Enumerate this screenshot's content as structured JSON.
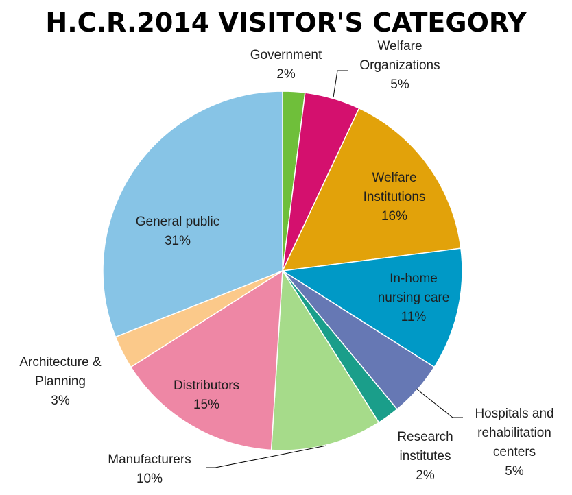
{
  "chart_data": {
    "type": "pie",
    "title": "H.C.R.2014 VISITOR'S CATEGORY",
    "slices": [
      {
        "name": "Government",
        "value": 2,
        "label": "2%",
        "color": "#6fbf3a"
      },
      {
        "name": "Welfare Organizations",
        "value": 5,
        "label": "5%",
        "color": "#d4106e"
      },
      {
        "name": "Welfare Institutions",
        "value": 16,
        "label": "16%",
        "color": "#e2a20a"
      },
      {
        "name": "In-home nursing care",
        "value": 11,
        "label": "11%",
        "color": "#0099c6"
      },
      {
        "name": "Hospitals and rehabilitation centers",
        "value": 5,
        "label": "5%",
        "color": "#6678b4"
      },
      {
        "name": "Research institutes",
        "value": 2,
        "label": "2%",
        "color": "#1a9e8a"
      },
      {
        "name": "Manufacturers",
        "value": 10,
        "label": "10%",
        "color": "#a6db8a"
      },
      {
        "name": "Distributors",
        "value": 15,
        "label": "15%",
        "color": "#ee87a5"
      },
      {
        "name": "Architecture & Planning",
        "value": 3,
        "label": "3%",
        "color": "#fbc98a"
      },
      {
        "name": "General public",
        "value": 31,
        "label": "31%",
        "color": "#87c4e6"
      }
    ]
  }
}
